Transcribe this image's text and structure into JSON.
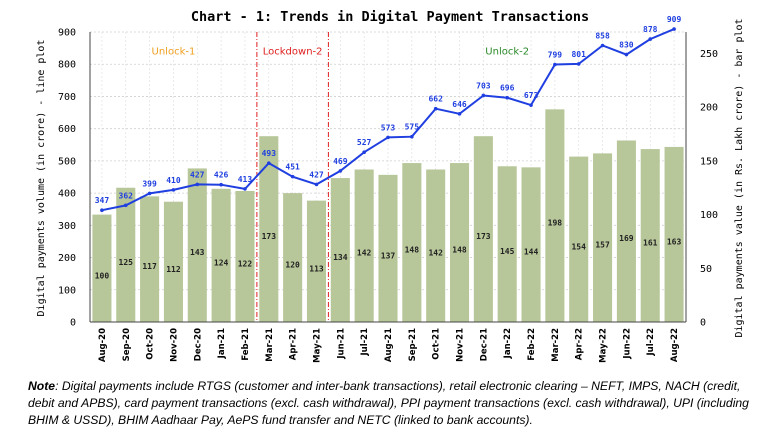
{
  "chart_data": {
    "type": "bar+line",
    "title": "Chart - 1: Trends in Digital Payment Transactions",
    "categories": [
      "Aug-20",
      "Sep-20",
      "Oct-20",
      "Nov-20",
      "Dec-20",
      "Jan-21",
      "Feb-21",
      "Mar-21",
      "Apr-21",
      "May-21",
      "Jun-21",
      "Jul-21",
      "Aug-21",
      "Sep-21",
      "Oct-21",
      "Nov-21",
      "Dec-21",
      "Jan-22",
      "Feb-22",
      "Mar-22",
      "Apr-22",
      "May-22",
      "Jun-22",
      "Jul-22",
      "Aug-22"
    ],
    "line_series": {
      "values": [
        347,
        362,
        399,
        410,
        427,
        426,
        413,
        493,
        451,
        427,
        469,
        527,
        573,
        575,
        662,
        646,
        703,
        696,
        673,
        799,
        801,
        858,
        830,
        878,
        909
      ],
      "color": "#1f3fe0",
      "axis": "left"
    },
    "bar_series": {
      "values": [
        100,
        125,
        117,
        112,
        143,
        124,
        122,
        173,
        120,
        113,
        134,
        142,
        137,
        148,
        142,
        148,
        173,
        145,
        144,
        198,
        154,
        157,
        169,
        161,
        163
      ],
      "color": "#b8c79a",
      "axis": "right"
    },
    "ylabel_left": "Digital payments volume (in crore) - line plot",
    "ylabel_right": "Digital payments value (in Rs. Lakh crore) - bar plot",
    "ylim_left": [
      0,
      900
    ],
    "yticks_left": [
      0,
      100,
      200,
      300,
      400,
      500,
      600,
      700,
      800,
      900
    ],
    "ylim_right": [
      0,
      270
    ],
    "yticks_right": [
      0,
      50,
      100,
      150,
      200,
      250
    ],
    "grid": true,
    "phases": [
      {
        "label": "Unlock-1",
        "color": "#f0a020"
      },
      {
        "label": "Lockdown-2",
        "color": "#e02020"
      },
      {
        "label": "Unlock-2",
        "color": "#2a8a2a"
      }
    ],
    "phase_boundaries": [
      "Feb-21/Mar-21",
      "May-21/Jun-21"
    ]
  },
  "note": {
    "label": "Note",
    "text": ": Digital payments include RTGS (customer and inter-bank transactions), retail electronic clearing – NEFT, IMPS, NACH (credit, debit and APBS), card payment transactions (excl. cash withdrawal), PPI payment transactions (excl. cash withdrawal), UPI (including BHIM & USSD), BHIM Aadhaar Pay, AePS fund transfer and NETC (linked to bank accounts)."
  }
}
